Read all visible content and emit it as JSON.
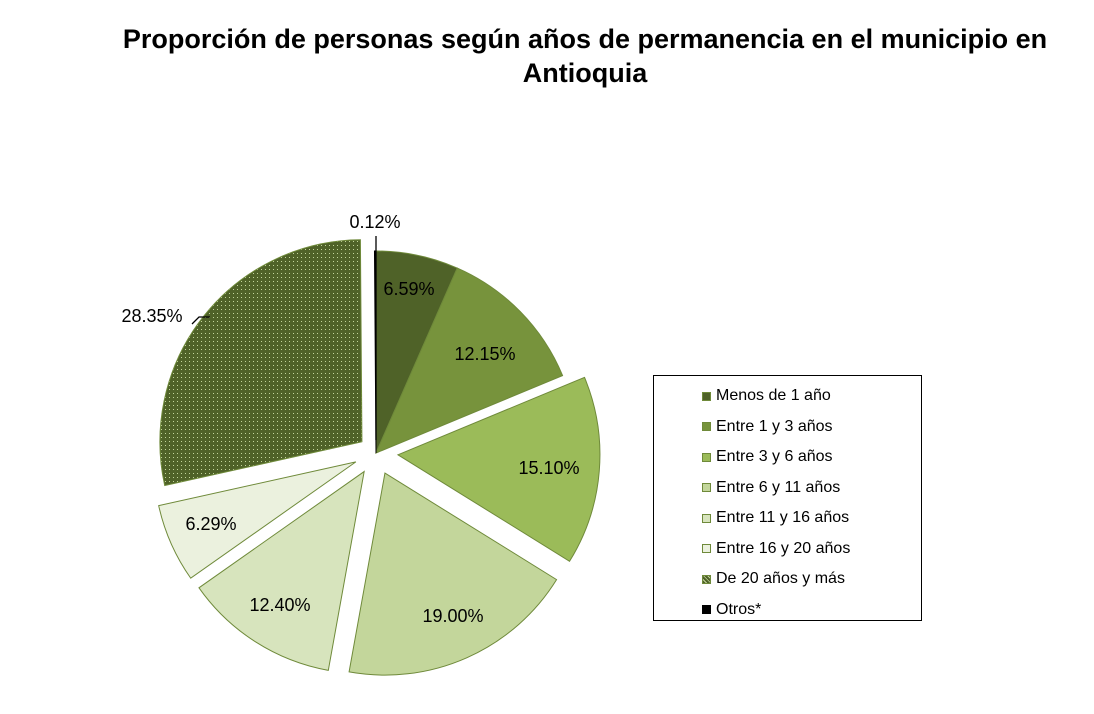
{
  "chart_data": {
    "type": "pie",
    "title": "Proporción de personas según años de permanencia en el municipio en Antioquia",
    "slices": [
      {
        "label": "Menos de 1 año",
        "value": 6.59,
        "value_label": "6.59%",
        "color": "#4f6228"
      },
      {
        "label": "Entre 1 y 3 años",
        "value": 12.15,
        "value_label": "12.15%",
        "color": "#77933c"
      },
      {
        "label": "Entre 3 y 6 años",
        "value": 15.1,
        "value_label": "15.10%",
        "color": "#9bbb59"
      },
      {
        "label": "Entre 6 y 11 años",
        "value": 19.0,
        "value_label": "19.00%",
        "color": "#c3d69b"
      },
      {
        "label": "Entre 11 y 16 años",
        "value": 12.4,
        "value_label": "12.40%",
        "color": "#d7e4bd"
      },
      {
        "label": "Entre 16 y 20 años",
        "value": 6.29,
        "value_label": "6.29%",
        "color": "#ebf1de"
      },
      {
        "label": "De 20 años y más",
        "value": 28.35,
        "value_label": "28.35%",
        "color": "#5c7a2e"
      },
      {
        "label": "Otros*",
        "value": 0.12,
        "value_label": "0.12%",
        "color": "#000000"
      }
    ],
    "legend_position": "right"
  }
}
